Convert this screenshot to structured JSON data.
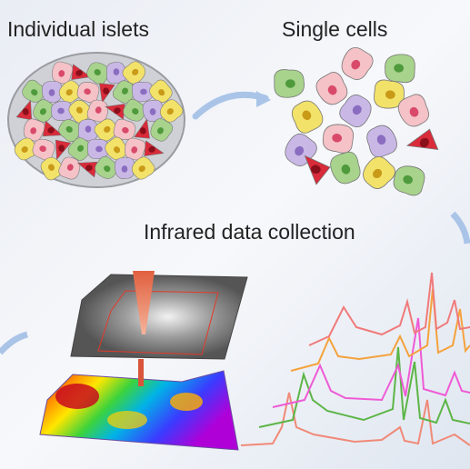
{
  "header": {
    "step1": "Individual islets",
    "step2": "Single cells",
    "step3": "Infrared data collection"
  }
}
